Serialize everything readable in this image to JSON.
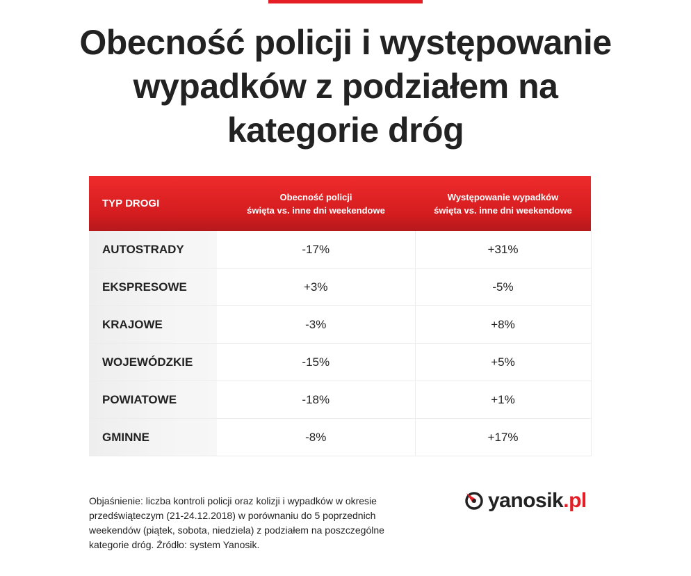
{
  "title_lines": [
    "Obecność policji i występowanie",
    "wypadków z podziałem na",
    "kategorie dróg"
  ],
  "table": {
    "headers": {
      "road_type": "TYP DROGI",
      "police": [
        "Obecność policji",
        "święta vs. inne dni weekendowe"
      ],
      "accidents": [
        "Występowanie wypadków",
        "święta vs. inne dni weekendowe"
      ]
    },
    "rows": [
      {
        "road": "AUTOSTRADY",
        "police": "-17%",
        "accidents": "+31%"
      },
      {
        "road": "EKSPRESOWE",
        "police": "+3%",
        "accidents": "-5%"
      },
      {
        "road": "KRAJOWE",
        "police": "-3%",
        "accidents": "+8%"
      },
      {
        "road": "WOJEWÓDZKIE",
        "police": "-15%",
        "accidents": "+5%"
      },
      {
        "road": "POWIATOWE",
        "police": "-18%",
        "accidents": "+1%"
      },
      {
        "road": "GMINNE",
        "police": "-8%",
        "accidents": "+17%"
      }
    ]
  },
  "note_lines": [
    "Objaśnienie: liczba kontroli policji oraz kolizji i wypadków w okresie",
    "przedświąteczym (21-24.12.2018) w porównaniu do 5 poprzednich",
    "weekendów (piątek, sobota, niedziela) z podziałem na poszczególne",
    "kategorie dróg. Źródło: system Yanosik."
  ],
  "brand": {
    "name": "yanosik",
    "tld": ".pl",
    "icon": "yanosik-logo-icon"
  },
  "colors": {
    "accent": "#e51e25",
    "text": "#222222"
  }
}
